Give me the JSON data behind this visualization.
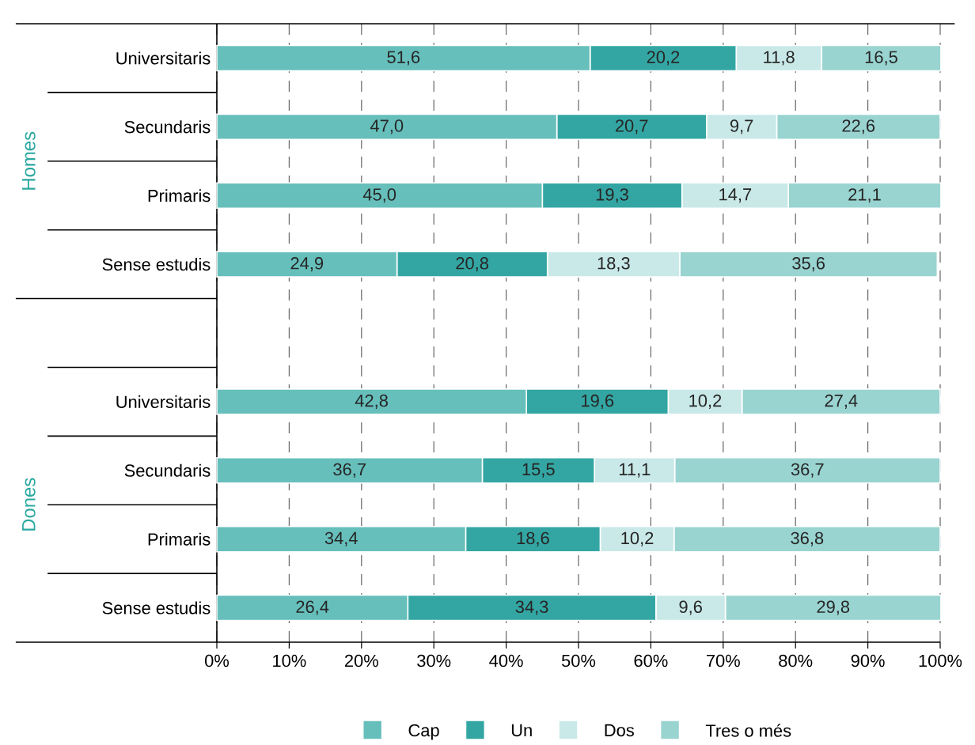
{
  "chart_data": {
    "type": "bar",
    "orientation": "horizontal",
    "stacked": true,
    "categories": [
      "Universitaris",
      "Secundaris",
      "Primaris",
      "Sense estudis",
      null,
      "Universitaris",
      "Secundaris",
      "Primaris",
      "Sense estudis"
    ],
    "series": [
      {
        "name": "Cap",
        "color": "#66bfbb",
        "values": [
          51.6,
          47.0,
          45.0,
          24.9,
          null,
          42.8,
          36.7,
          34.4,
          26.4
        ],
        "value_labels": [
          "51,6",
          "47,0",
          "45,0",
          "24,9",
          null,
          "42,8",
          "36,7",
          "34,4",
          "26,4"
        ]
      },
      {
        "name": "Un",
        "color": "#33a6a3",
        "values": [
          20.2,
          20.7,
          19.3,
          20.8,
          null,
          19.6,
          15.5,
          18.6,
          34.3
        ],
        "value_labels": [
          "20,2",
          "20,7",
          "19,3",
          "20,8",
          null,
          "19,6",
          "15,5",
          "18,6",
          "34,3"
        ]
      },
      {
        "name": "Dos",
        "color": "#c9e9e8",
        "values": [
          11.8,
          9.7,
          14.7,
          18.3,
          null,
          10.2,
          11.1,
          10.2,
          9.6
        ],
        "value_labels": [
          "11,8",
          "9,7",
          "14,7",
          "18,3",
          null,
          "10,2",
          "11,1",
          "10,2",
          "9,6"
        ]
      },
      {
        "name": "Tres o més",
        "color": "#99d4d1",
        "values": [
          16.5,
          22.6,
          21.1,
          35.6,
          null,
          27.4,
          36.7,
          36.8,
          29.8
        ],
        "value_labels": [
          "16,5",
          "22,6",
          "21,1",
          "35,6",
          null,
          "27,4",
          "36,7",
          "36,8",
          "29,8"
        ]
      }
    ],
    "xlim": [
      0,
      100
    ],
    "xticks": [
      {
        "value": 0,
        "label": "0%"
      },
      {
        "value": 10,
        "label": "10%"
      },
      {
        "value": 20,
        "label": "20%"
      },
      {
        "value": 30,
        "label": "30%"
      },
      {
        "value": 40,
        "label": "40%"
      },
      {
        "value": 50,
        "label": "50%"
      },
      {
        "value": 60,
        "label": "60%"
      },
      {
        "value": 70,
        "label": "70%"
      },
      {
        "value": 80,
        "label": "80%"
      },
      {
        "value": 90,
        "label": "90%"
      },
      {
        "value": 100,
        "label": "100%"
      }
    ],
    "annotations": [
      "Homes",
      "Dones"
    ],
    "grid": "x",
    "legend": "bottom"
  }
}
